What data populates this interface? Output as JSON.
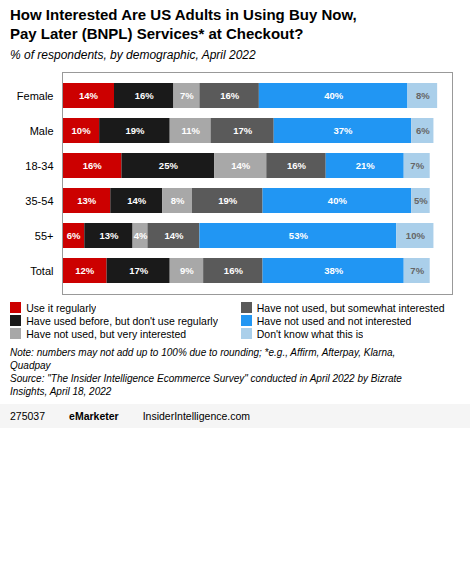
{
  "chart_data": {
    "type": "bar",
    "orientation": "horizontal",
    "stacked": true,
    "data_labels": true,
    "tick_labels": "y",
    "legend": "bottom",
    "title": "How Interested Are US Adults in Using Buy Now,\nPay Later (BNPL) Services* at Checkout?",
    "subtitle": "% of respondents, by demographic, April 2022",
    "categories": [
      "Female",
      "Male",
      "18-34",
      "35-54",
      "55+",
      "Total"
    ],
    "xlim": [
      0,
      105
    ],
    "series": [
      {
        "name": "Use it regularly",
        "color": "#cc0000",
        "values": [
          14,
          10,
          16,
          13,
          6,
          12
        ],
        "value_labels": [
          "14%",
          "10%",
          "16%",
          "13%",
          "6%",
          "12%"
        ]
      },
      {
        "name": "Have used before, but don't use regularly",
        "color": "#1a1a1a",
        "values": [
          16,
          19,
          25,
          14,
          13,
          17
        ],
        "value_labels": [
          "16%",
          "19%",
          "25%",
          "14%",
          "13%",
          "17%"
        ]
      },
      {
        "name": "Have not used, but very interested",
        "color": "#a8a8a8",
        "values": [
          7,
          11,
          14,
          8,
          4,
          9
        ],
        "value_labels": [
          "7%",
          "11%",
          "14%",
          "8%",
          "4%",
          "9%"
        ]
      },
      {
        "name": "Have not used, but somewhat interested",
        "color": "#5a5a5a",
        "values": [
          16,
          17,
          16,
          19,
          14,
          16
        ],
        "value_labels": [
          "16%",
          "17%",
          "16%",
          "19%",
          "14%",
          "16%"
        ]
      },
      {
        "name": "Have not used and not interested",
        "color": "#2196F3",
        "values": [
          40,
          37,
          21,
          40,
          53,
          38
        ],
        "value_labels": [
          "40%",
          "37%",
          "21%",
          "40%",
          "53%",
          "38%"
        ]
      },
      {
        "name": "Don't know what this is",
        "color": "#aacfea",
        "values": [
          8,
          6,
          7,
          5,
          10,
          7
        ],
        "value_labels": [
          "8%",
          "6%",
          "7%",
          "5%",
          "10%",
          "7%"
        ]
      }
    ],
    "notes": [
      "Note: numbers may not add up to 100% due to rounding; *e.g., Affirm, Afterpay, Klarna,",
      "Quadpay",
      "Source: \"The Insider Intelligence Ecommerce Survey\" conducted in April 2022 by Bizrate",
      "Insights, April 18, 2022"
    ],
    "footer": [
      "275037",
      "eMarketer",
      "InsiderIntelligence.com"
    ]
  }
}
